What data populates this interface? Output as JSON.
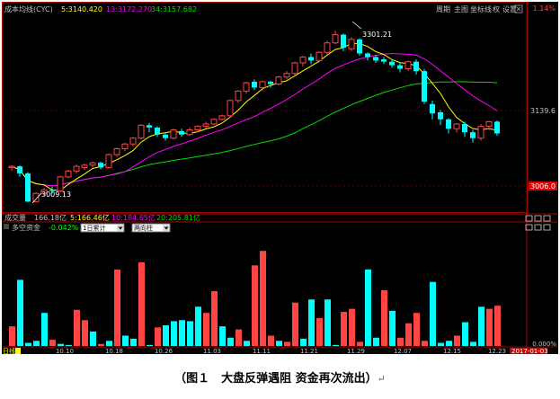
{
  "upper_panel": {
    "indicator_name": "成本均线(CYC)",
    "ma5": "5:3140.420",
    "ma13": "13:3172.270",
    "ma34": "34:3157.682",
    "toolbar": [
      {
        "label": "周期",
        "name": "period-button"
      },
      {
        "label": "主图",
        "name": "main-chart-button"
      },
      {
        "label": "坐标线",
        "name": "axis-line-button"
      },
      {
        "label": "权",
        "name": "rights-button"
      },
      {
        "label": "设置",
        "name": "settings-button"
      }
    ],
    "price_labels": {
      "top": "1.14%",
      "mid": "3139.6",
      "low": "3006.0"
    },
    "annotations": {
      "high": "3301.21",
      "low": "3009.13"
    }
  },
  "volume_panel": {
    "title": "成交量",
    "total": "166.18亿",
    "ma5": "5:166.46亿",
    "ma10": "10:184.65亿",
    "ma20": "20:205.81亿"
  },
  "capital_panel": {
    "title": "多空资金",
    "value": "-0.042%",
    "dropdown1": "1日累计",
    "dropdown2": "两向柱",
    "zero_label": "0.000%"
  },
  "footer": {
    "period_tag": "日线",
    "dates": [
      "10.10",
      "10.18",
      "10.26",
      "11.03",
      "11.11",
      "11.21",
      "11.29",
      "12.07",
      "12.15",
      "12.23"
    ],
    "current_date": "2017-01-03"
  },
  "colors": {
    "up": "#ff4444",
    "down": "#00ffff",
    "ma5": "#ffff00",
    "ma13": "#ff00ff",
    "ma34": "#00dd00",
    "frame": "#a00000",
    "bg": "#000000"
  },
  "chart_data": {
    "type": "candlestick",
    "y_labels": [
      "3301.21",
      "3139.6",
      "3009.13",
      "3006.0"
    ],
    "x_tick_labels": [
      "10.10",
      "10.18",
      "10.26",
      "11.03",
      "11.11",
      "11.21",
      "11.29",
      "12.07",
      "12.15",
      "12.23"
    ],
    "candles": [
      [
        3068,
        3070,
        3062,
        3072
      ],
      [
        3070,
        3058,
        3052,
        3072
      ],
      [
        3058,
        3010,
        3009,
        3060
      ],
      [
        3010,
        3024,
        3009,
        3026
      ],
      [
        3024,
        3030,
        3020,
        3033
      ],
      [
        3030,
        3028,
        3024,
        3035
      ],
      [
        3028,
        3052,
        3026,
        3054
      ],
      [
        3052,
        3062,
        3050,
        3064
      ],
      [
        3062,
        3070,
        3058,
        3073
      ],
      [
        3068,
        3072,
        3064,
        3075
      ],
      [
        3072,
        3076,
        3068,
        3078
      ],
      [
        3076,
        3068,
        3065,
        3078
      ],
      [
        3068,
        3090,
        3066,
        3092
      ],
      [
        3090,
        3100,
        3086,
        3102
      ],
      [
        3100,
        3108,
        3096,
        3110
      ],
      [
        3108,
        3118,
        3104,
        3120
      ],
      [
        3118,
        3140,
        3116,
        3142
      ],
      [
        3140,
        3136,
        3128,
        3144
      ],
      [
        3136,
        3124,
        3120,
        3138
      ],
      [
        3124,
        3118,
        3114,
        3126
      ],
      [
        3118,
        3132,
        3116,
        3134
      ],
      [
        3130,
        3124,
        3120,
        3134
      ],
      [
        3124,
        3132,
        3122,
        3136
      ],
      [
        3132,
        3138,
        3128,
        3140
      ],
      [
        3138,
        3142,
        3134,
        3146
      ],
      [
        3142,
        3150,
        3140,
        3152
      ],
      [
        3150,
        3156,
        3148,
        3158
      ],
      [
        3156,
        3182,
        3152,
        3184
      ],
      [
        3182,
        3198,
        3178,
        3200
      ],
      [
        3198,
        3212,
        3194,
        3214
      ],
      [
        3214,
        3204,
        3200,
        3218
      ],
      [
        3204,
        3214,
        3198,
        3216
      ],
      [
        3214,
        3210,
        3204,
        3216
      ],
      [
        3210,
        3222,
        3208,
        3224
      ],
      [
        3222,
        3228,
        3218,
        3232
      ],
      [
        3228,
        3246,
        3224,
        3248
      ],
      [
        3246,
        3256,
        3240,
        3258
      ],
      [
        3256,
        3250,
        3244,
        3262
      ],
      [
        3250,
        3264,
        3246,
        3266
      ],
      [
        3264,
        3280,
        3260,
        3284
      ],
      [
        3280,
        3294,
        3278,
        3301
      ],
      [
        3294,
        3272,
        3266,
        3296
      ],
      [
        3270,
        3286,
        3266,
        3290
      ],
      [
        3286,
        3262,
        3258,
        3288
      ],
      [
        3262,
        3256,
        3250,
        3264
      ],
      [
        3256,
        3250,
        3246,
        3260
      ],
      [
        3252,
        3248,
        3244,
        3256
      ],
      [
        3248,
        3242,
        3238,
        3252
      ],
      [
        3242,
        3236,
        3230,
        3246
      ],
      [
        3236,
        3248,
        3232,
        3250
      ],
      [
        3248,
        3232,
        3226,
        3252
      ],
      [
        3232,
        3180,
        3176,
        3236
      ],
      [
        3176,
        3160,
        3150,
        3182
      ],
      [
        3162,
        3150,
        3140,
        3166
      ],
      [
        3150,
        3134,
        3126,
        3152
      ],
      [
        3134,
        3142,
        3128,
        3144
      ],
      [
        3142,
        3128,
        3120,
        3146
      ],
      [
        3128,
        3118,
        3110,
        3132
      ],
      [
        3118,
        3138,
        3114,
        3142
      ],
      [
        3138,
        3146,
        3132,
        3148
      ],
      [
        3146,
        3126,
        3122,
        3148
      ]
    ],
    "capital_bars": [
      {
        "v": 0.19,
        "c": "up"
      },
      {
        "v": 0.64,
        "c": "down"
      },
      {
        "v": 0.03,
        "c": "down"
      },
      {
        "v": 0.05,
        "c": "down"
      },
      {
        "v": 0.32,
        "c": "down"
      },
      {
        "v": 0.06,
        "c": "up"
      },
      {
        "v": 0.02,
        "c": "down"
      },
      {
        "v": 0.01,
        "c": "down"
      },
      {
        "v": 0.35,
        "c": "up"
      },
      {
        "v": 0.25,
        "c": "up"
      },
      {
        "v": 0.14,
        "c": "down"
      },
      {
        "v": 0.02,
        "c": "up"
      },
      {
        "v": 0.05,
        "c": "down"
      },
      {
        "v": 0.74,
        "c": "up"
      },
      {
        "v": 0.1,
        "c": "down"
      },
      {
        "v": 0.07,
        "c": "down"
      },
      {
        "v": 0.81,
        "c": "up"
      },
      {
        "v": 0.01,
        "c": "down"
      },
      {
        "v": 0.18,
        "c": "up"
      },
      {
        "v": 0.2,
        "c": "down"
      },
      {
        "v": 0.24,
        "c": "down"
      },
      {
        "v": 0.25,
        "c": "down"
      },
      {
        "v": 0.24,
        "c": "down"
      },
      {
        "v": 0.38,
        "c": "down"
      },
      {
        "v": 0.32,
        "c": "up"
      },
      {
        "v": 0.53,
        "c": "up"
      },
      {
        "v": 0.19,
        "c": "down"
      },
      {
        "v": 0.08,
        "c": "down"
      },
      {
        "v": 0.16,
        "c": "up"
      },
      {
        "v": 0.05,
        "c": "down"
      },
      {
        "v": 0.78,
        "c": "up"
      },
      {
        "v": 0.92,
        "c": "up"
      },
      {
        "v": 0.1,
        "c": "up"
      },
      {
        "v": 0.05,
        "c": "down"
      },
      {
        "v": 0.04,
        "c": "up"
      },
      {
        "v": 0.42,
        "c": "up"
      },
      {
        "v": 0.07,
        "c": "down"
      },
      {
        "v": 0.45,
        "c": "down"
      },
      {
        "v": 0.27,
        "c": "up"
      },
      {
        "v": 0.45,
        "c": "down"
      },
      {
        "v": 0.01,
        "c": "down"
      },
      {
        "v": 0.33,
        "c": "up"
      },
      {
        "v": 0.36,
        "c": "up"
      },
      {
        "v": 0.04,
        "c": "up"
      },
      {
        "v": 0.74,
        "c": "down"
      },
      {
        "v": 0.08,
        "c": "down"
      },
      {
        "v": 0.54,
        "c": "up"
      },
      {
        "v": 0.34,
        "c": "down"
      },
      {
        "v": 0.08,
        "c": "up"
      },
      {
        "v": 0.22,
        "c": "up"
      },
      {
        "v": 0.32,
        "c": "up"
      },
      {
        "v": 0.05,
        "c": "up"
      },
      {
        "v": 0.62,
        "c": "down"
      },
      {
        "v": 0.03,
        "c": "down"
      },
      {
        "v": 0.05,
        "c": "down"
      },
      {
        "v": 0.1,
        "c": "up"
      },
      {
        "v": 0.23,
        "c": "down"
      },
      {
        "v": 0.04,
        "c": "down"
      },
      {
        "v": 0.38,
        "c": "down"
      },
      {
        "v": 0.36,
        "c": "up"
      },
      {
        "v": 0.39,
        "c": "up"
      }
    ]
  },
  "caption": "（图１　大盘反弹遇阻  资金再次流出）"
}
